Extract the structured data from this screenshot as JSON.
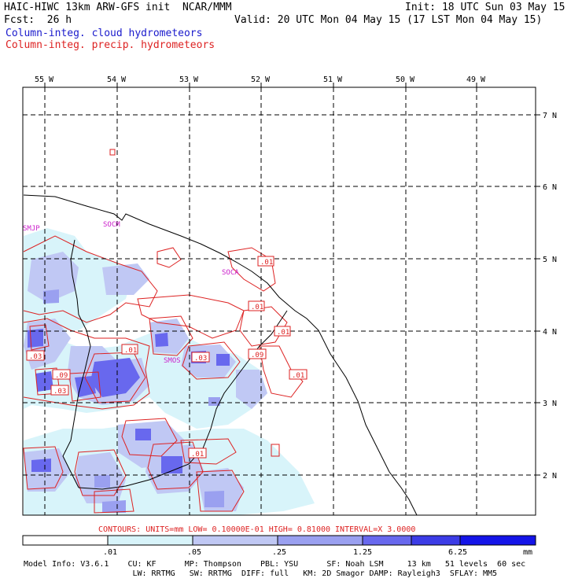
{
  "header": {
    "title_left": "HAIC-HIWC 13km ARW-GFS init  NCAR/MMM",
    "init": "Init: 18 UTC Sun 03 May 15",
    "fcst": "Fcst:  26 h",
    "valid": "Valid: 20 UTC Mon 04 May 15 (17 LST Mon 04 May 15)",
    "field_cloud": "Column-integ. cloud hydrometeors",
    "field_precip": "Column-integ. precip. hydrometeors"
  },
  "map": {
    "lon_labels": [
      "55 W",
      "54 W",
      "53 W",
      "52 W",
      "51 W",
      "50 W",
      "49 W"
    ],
    "lat_labels": [
      "7 N",
      "6 N",
      "5 N",
      "4 N",
      "3 N",
      "2 N"
    ],
    "stations": [
      "SMJP",
      "SOCM",
      "SOCA",
      "SMOS"
    ],
    "contour_labels": [
      ".01",
      ".01",
      ".01",
      ".03",
      ".01",
      ".03",
      ".03",
      ".09",
      ".03",
      ".09",
      ".01",
      ".01"
    ]
  },
  "contour_info": "CONTOURS:  UNITS=mm  LOW= 0.10000E-01  HIGH= 0.81000      INTERVAL=X  3.0000",
  "colorbar": {
    "ticks": [
      ".01",
      ".05",
      ".25",
      "1.25",
      "6.25"
    ],
    "unit": "mm",
    "colors": [
      "#ffffff",
      "#d8f4fa",
      "#c0c8f4",
      "#9aa0f0",
      "#6868ee",
      "#3c3ce6",
      "#1414e8"
    ]
  },
  "model_info": {
    "line1": "Model Info: V3.6.1    CU: KF      MP: Thompson    PBL: YSU      SF: Noah LSM     13 km   51 levels  60 sec",
    "line2": "                       LW: RRTMG   SW: RRTMG  DIFF: full   KM: 2D Smagor DAMP: Rayleigh3  SFLAY: MM5"
  }
}
